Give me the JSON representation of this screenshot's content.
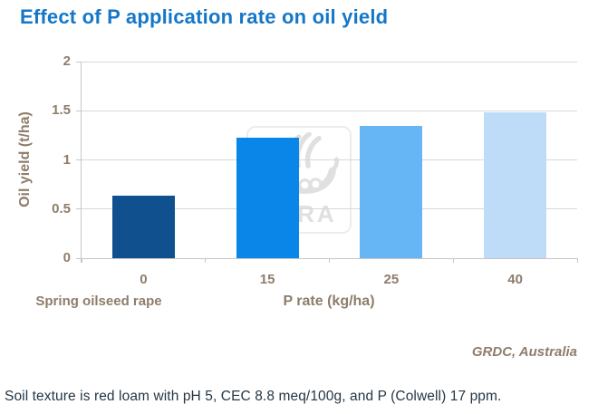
{
  "title": "Effect of P application rate on oil yield",
  "source": "GRDC, Australia",
  "caption": "Soil texture is red loam with pH 5, CEC 8.8 meq/100g, and P (Colwell) 17 ppm.",
  "watermark": {
    "brand": "YARA",
    "icon": "yara-viking-ship-logo"
  },
  "chart_data": {
    "type": "bar",
    "categories": [
      "0",
      "15",
      "25",
      "40"
    ],
    "values": [
      0.64,
      1.23,
      1.35,
      1.48
    ],
    "bar_colors": [
      "#10508f",
      "#0986e8",
      "#66b5f5",
      "#bedcf8"
    ],
    "title": "Effect of P application rate on oil yield",
    "xlabel": "P rate (kg/ha)",
    "ylabel": "Oil yield (t/ha)",
    "x_sublabel_left": "Spring oilseed rape",
    "ylim": [
      0,
      2
    ],
    "yticks": [
      0,
      0.5,
      1,
      1.5,
      2
    ],
    "ytick_labels": [
      "0",
      "0.5",
      "1",
      "1.5",
      "2"
    ],
    "grid": true,
    "legend": "none"
  },
  "colors": {
    "title": "#1477c8",
    "axis_text": "#8e7d6b",
    "gridline": "#d8d8d8",
    "axis_line": "#c6c6c6",
    "caption_text": "#243746",
    "watermark": "#e0e0e0"
  }
}
